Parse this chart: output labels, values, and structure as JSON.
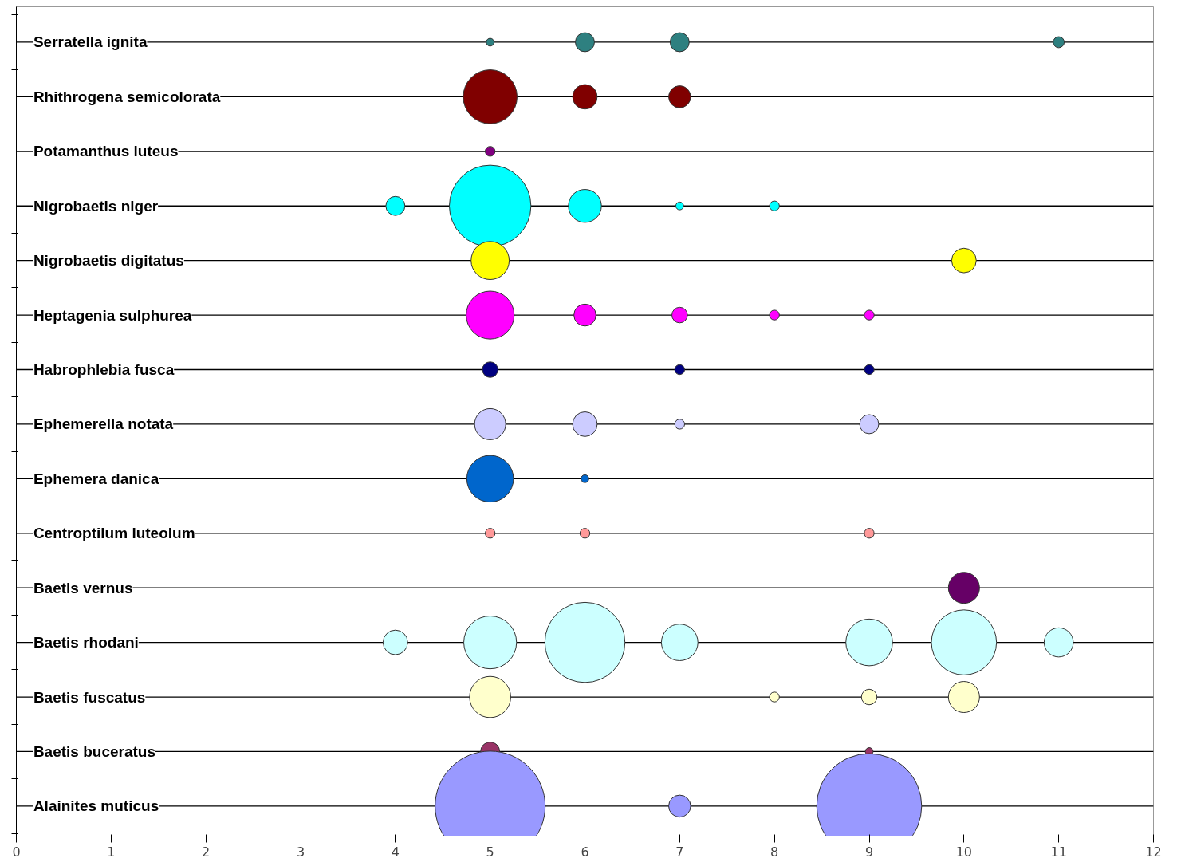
{
  "chart_data": {
    "type": "bubble",
    "orientation": "horizontal",
    "tick_labels": "x",
    "grid": false,
    "xlim": [
      0,
      12
    ],
    "xticks": [
      0,
      1,
      2,
      3,
      4,
      5,
      6,
      7,
      8,
      9,
      10,
      11,
      12
    ],
    "categories": [
      "Serratella ignita",
      "Rhithrogena semicolorata",
      "Potamanthus luteus",
      "Nigrobaetis niger",
      "Nigrobaetis digitatus",
      "Heptagenia sulphurea",
      "Habrophlebia fusca",
      "Ephemerella notata",
      "Ephemera danica",
      "Centroptilum luteolum",
      "Baetis vernus",
      "Baetis rhodani",
      "Baetis fuscatus",
      "Baetis buceratus",
      "Alainites muticus"
    ],
    "series": [
      {
        "values": [
          null,
          null,
          null,
          4,
          null,
          null,
          null,
          null,
          null,
          null,
          null,
          4,
          null,
          null,
          null
        ],
        "sizes": [
          null,
          null,
          null,
          0.03,
          null,
          null,
          null,
          null,
          null,
          null,
          null,
          0.05,
          null,
          null,
          null
        ],
        "colors": [
          null,
          null,
          null,
          "#00ffff",
          null,
          null,
          null,
          null,
          null,
          null,
          null,
          "#ccffff",
          null,
          null,
          null
        ]
      },
      {
        "values": [
          5,
          5,
          5,
          5,
          5,
          5,
          5,
          5,
          5,
          5,
          null,
          5,
          5,
          5,
          5
        ],
        "sizes": [
          0.005,
          0.24,
          0.008,
          0.55,
          0.12,
          0.19,
          0.02,
          0.08,
          0.18,
          0.008,
          null,
          0.23,
          0.14,
          0.03,
          1
        ],
        "colors": [
          "#2e8080",
          "#800000",
          "#800080",
          "#00ffff",
          "#ffff00",
          "#ff00ff",
          "#000080",
          "#ccccff",
          "#0066cc",
          "#ff9999",
          null,
          "#ccffff",
          "#ffffcc",
          "#993366",
          "#9999ff"
        ]
      },
      {
        "values": [
          6,
          6,
          null,
          6,
          null,
          6,
          null,
          6,
          6,
          6,
          null,
          6,
          null,
          null,
          null
        ],
        "sizes": [
          0.03,
          0.05,
          null,
          0.09,
          null,
          0.04,
          null,
          0.05,
          0.005,
          0.008,
          null,
          0.53,
          null,
          null,
          null
        ],
        "colors": [
          "#2e8080",
          "#800000",
          null,
          "#00ffff",
          null,
          "#ff00ff",
          null,
          "#ccccff",
          "#0066cc",
          "#ff9999",
          null,
          "#ccffff",
          null,
          null,
          null
        ]
      },
      {
        "values": [
          7,
          7,
          null,
          7,
          null,
          7,
          7,
          7,
          null,
          null,
          null,
          7,
          null,
          null,
          7
        ],
        "sizes": [
          0.03,
          0.04,
          null,
          0.005,
          null,
          0.02,
          0.008,
          0.008,
          null,
          null,
          null,
          0.11,
          null,
          null,
          0.04
        ],
        "colors": [
          "#2e8080",
          "#800000",
          null,
          "#00ffff",
          null,
          "#ff00ff",
          "#000080",
          "#ccccff",
          null,
          null,
          null,
          "#ccffff",
          null,
          null,
          "#9999ff"
        ]
      },
      {
        "values": [
          null,
          null,
          null,
          8,
          null,
          8,
          null,
          null,
          null,
          null,
          null,
          null,
          8,
          null,
          null
        ],
        "sizes": [
          null,
          null,
          null,
          0.008,
          null,
          0.008,
          null,
          null,
          null,
          null,
          null,
          null,
          0.008,
          null,
          null
        ],
        "colors": [
          null,
          null,
          null,
          "#00ffff",
          null,
          "#ff00ff",
          null,
          null,
          null,
          null,
          null,
          null,
          "#ffffcc",
          null,
          null
        ]
      },
      {
        "values": [
          null,
          null,
          null,
          null,
          null,
          9,
          9,
          9,
          null,
          9,
          null,
          9,
          9,
          9,
          9
        ],
        "sizes": [
          null,
          null,
          null,
          null,
          null,
          0.008,
          0.008,
          0.03,
          null,
          0.008,
          null,
          0.18,
          0.02,
          0.005,
          0.91
        ],
        "colors": [
          null,
          null,
          null,
          null,
          null,
          "#ff00ff",
          "#000080",
          "#ccccff",
          null,
          "#ff9999",
          null,
          "#ccffff",
          "#ffffcc",
          "#993366",
          "#9999ff"
        ]
      },
      {
        "values": [
          null,
          null,
          null,
          null,
          10,
          null,
          null,
          null,
          null,
          null,
          10,
          10,
          10,
          null,
          null
        ],
        "sizes": [
          null,
          null,
          null,
          null,
          0.05,
          null,
          null,
          null,
          null,
          null,
          0.08,
          0.35,
          0.08,
          null,
          null
        ],
        "colors": [
          null,
          null,
          null,
          null,
          "#ffff00",
          null,
          null,
          null,
          null,
          null,
          "#660066",
          "#ccffff",
          "#ffffcc",
          null,
          null
        ]
      },
      {
        "values": [
          11,
          null,
          null,
          null,
          null,
          null,
          null,
          null,
          null,
          null,
          null,
          11,
          null,
          null,
          null
        ],
        "sizes": [
          0.01,
          null,
          null,
          null,
          null,
          null,
          null,
          null,
          null,
          null,
          null,
          0.07,
          null,
          null,
          null
        ],
        "colors": [
          "#2e8080",
          null,
          null,
          null,
          null,
          null,
          null,
          null,
          null,
          null,
          null,
          "#ccffff",
          null,
          null,
          null
        ]
      }
    ]
  }
}
